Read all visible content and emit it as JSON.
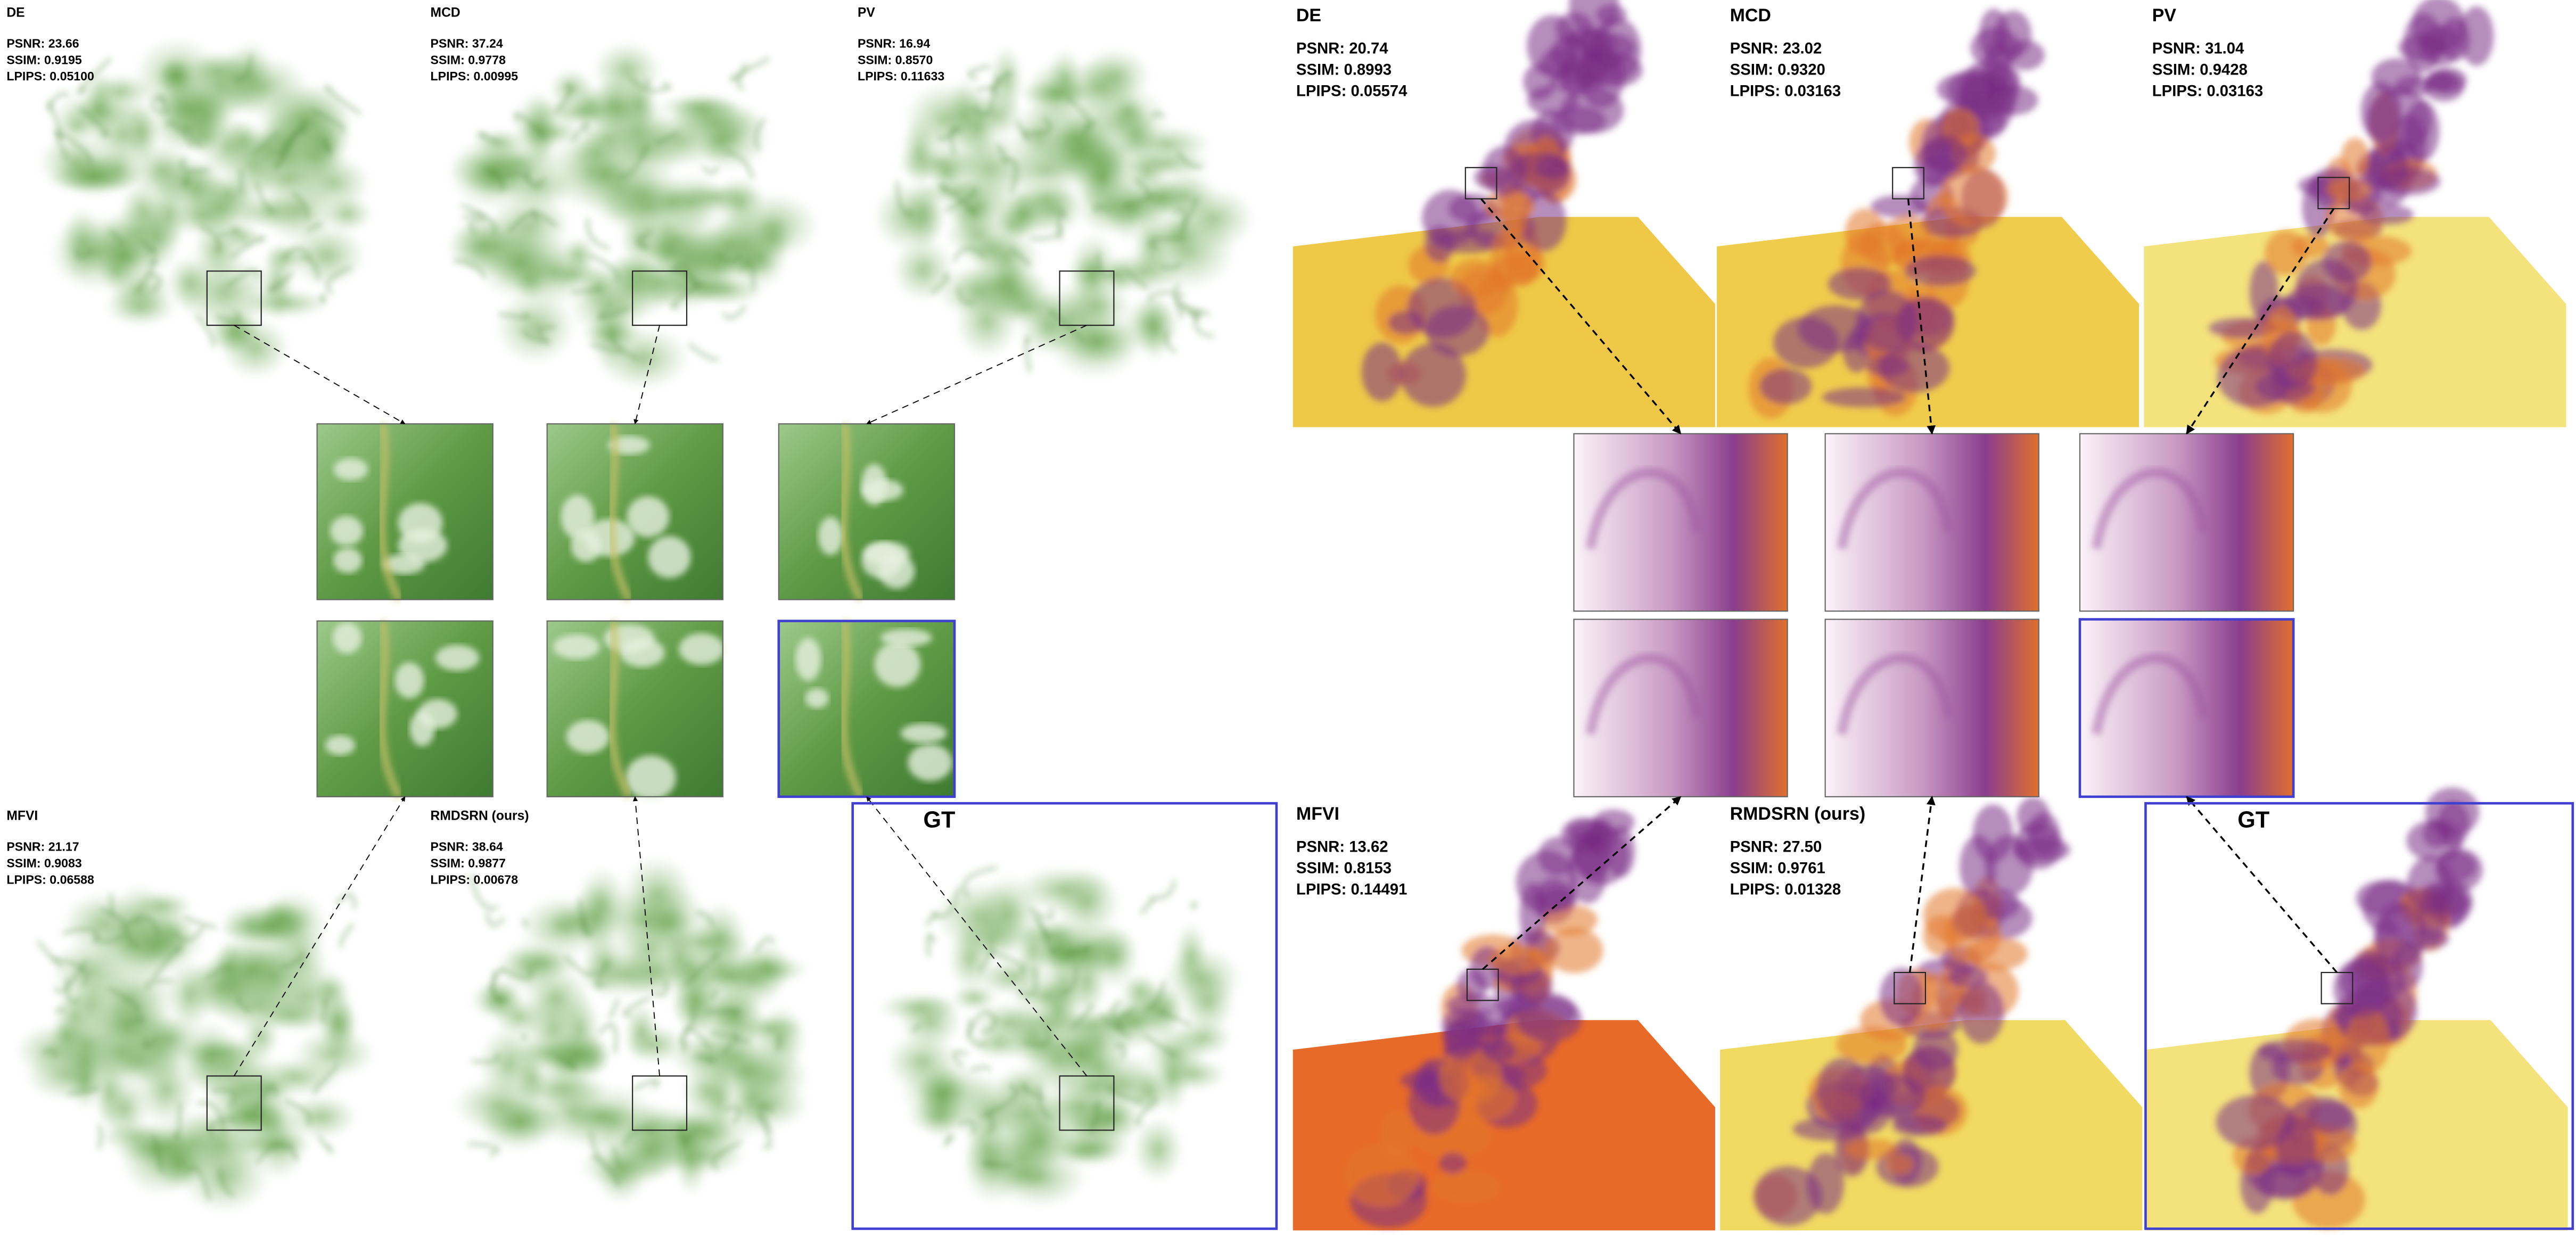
{
  "panels": [
    {
      "methods": [
        {
          "name": "DE",
          "metrics": [
            "PSNR: 23.66",
            "SSIM: 0.9195",
            "LPIPS: 0.05100"
          ]
        },
        {
          "name": "MCD",
          "metrics": [
            "PSNR: 37.24",
            "SSIM: 0.9778",
            "LPIPS: 0.00995"
          ]
        },
        {
          "name": "PV",
          "metrics": [
            "PSNR: 16.94",
            "SSIM: 0.8570",
            "LPIPS: 0.11633"
          ]
        },
        {
          "name": "MFVI",
          "metrics": [
            "PSNR: 21.17",
            "SSIM: 0.9083",
            "LPIPS: 0.06588"
          ]
        },
        {
          "name": "RMDSRN (ours)",
          "metrics": [
            "PSNR: 38.64",
            "SSIM: 0.9877",
            "LPIPS: 0.00678"
          ]
        },
        {
          "name": "GT"
        }
      ]
    },
    {
      "methods": [
        {
          "name": "DE",
          "metrics": [
            "PSNR: 20.74",
            "SSIM: 0.8993",
            "LPIPS: 0.05574"
          ]
        },
        {
          "name": "MCD",
          "metrics": [
            "PSNR: 23.02",
            "SSIM: 0.9320",
            "LPIPS: 0.03163"
          ]
        },
        {
          "name": "PV",
          "metrics": [
            "PSNR: 31.04",
            "SSIM: 0.9428",
            "LPIPS: 0.03163"
          ]
        },
        {
          "name": "MFVI",
          "metrics": [
            "PSNR: 13.62",
            "SSIM: 0.8153",
            "LPIPS: 0.14491"
          ]
        },
        {
          "name": "RMDSRN (ours)",
          "metrics": [
            "PSNR: 27.50",
            "SSIM: 0.9761",
            "LPIPS: 0.01328"
          ]
        },
        {
          "name": "GT"
        }
      ]
    }
  ]
}
